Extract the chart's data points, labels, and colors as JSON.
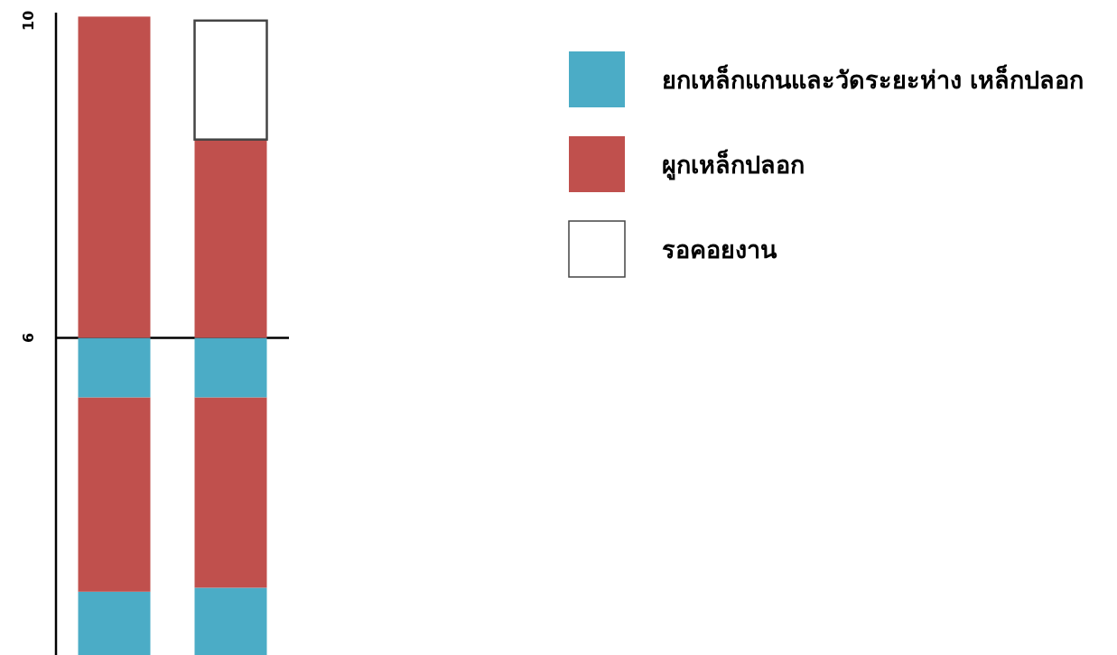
{
  "chart_data": {
    "type": "bar",
    "stacked": true,
    "categories": [
      null,
      null
    ],
    "ylim": [
      0,
      10.1
    ],
    "yticks": [
      6,
      10
    ],
    "legend": "top right",
    "ref_lines": [
      {
        "axis": "y",
        "value": 6,
        "color": "#000000"
      }
    ],
    "series": [
      {
        "name": "ยกเหล็กแกนและวัดระยะห่าง เหล็กปลอก",
        "color": "#4bacc6",
        "values": [
          2.8,
          2.85
        ]
      },
      {
        "name": "ผูกเหล็กปลอก",
        "color": "#c0504d",
        "values": [
          2.45,
          2.4
        ]
      },
      {
        "color": "#4bacc6",
        "values": [
          0.75,
          0.75
        ]
      },
      {
        "color": "#c0504d",
        "values": [
          4.05,
          2.5
        ]
      },
      {
        "name": "รอคอยงาน",
        "color": "#ffffff",
        "values": [
          null,
          1.5
        ]
      }
    ]
  }
}
